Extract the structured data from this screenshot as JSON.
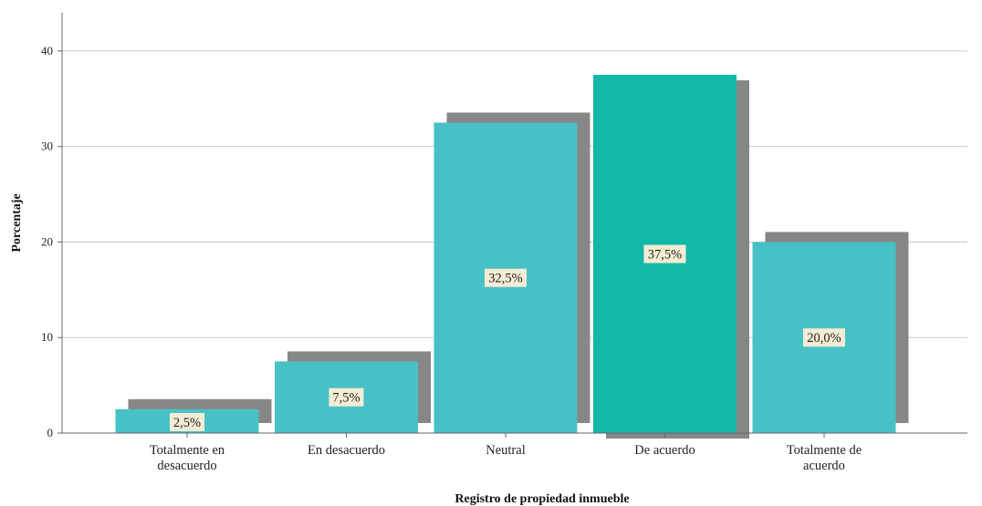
{
  "chart_data": {
    "type": "bar",
    "categories": [
      [
        "Totalmente en",
        "desacuerdo"
      ],
      [
        "En desacuerdo"
      ],
      [
        "Neutral"
      ],
      [
        "De acuerdo"
      ],
      [
        "Totalmente de",
        "acuerdo"
      ]
    ],
    "values": [
      2.5,
      7.5,
      32.5,
      37.5,
      20.0
    ],
    "data_labels": [
      "2,5%",
      "7,5%",
      "32,5%",
      "37,5%",
      "20,0%"
    ],
    "highlighted_index": 3,
    "xlabel": "Registro de propiedad inmueble",
    "ylabel": "Porcentaje",
    "ylim": [
      0,
      44
    ],
    "yticks": [
      0,
      10,
      20,
      30,
      40
    ],
    "grid": true,
    "colors": {
      "bar": "#48c1c6",
      "bar_highlight": "#13b7a7",
      "shadow": "#878787",
      "gridline": "#c8c8c8",
      "axis": "#666666",
      "label_bg": "#f4ecd4"
    }
  }
}
